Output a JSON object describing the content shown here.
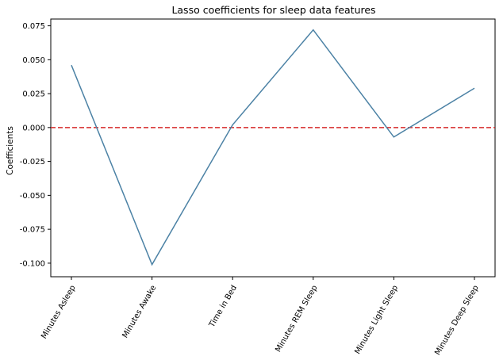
{
  "chart_data": {
    "type": "line",
    "title": "Lasso coefficients for sleep data features",
    "xlabel": "",
    "ylabel": "Coefficients",
    "categories": [
      "Minutes Asleep",
      "Minutes Awake",
      "Time in Bed",
      "Minutes REM Sleep",
      "Minutes Light Sleep",
      "Minutes Deep Sleep"
    ],
    "values": [
      0.046,
      -0.101,
      0.002,
      0.072,
      -0.007,
      0.029
    ],
    "ylim": [
      -0.11,
      0.08
    ],
    "yticks": [
      "0.075",
      "0.050",
      "0.025",
      "0.000",
      "-0.025",
      "-0.050",
      "-0.075",
      "-0.100"
    ],
    "ytick_values": [
      0.075,
      0.05,
      0.025,
      0.0,
      -0.025,
      -0.05,
      -0.075,
      -0.1
    ],
    "reference_line": {
      "y": 0.0,
      "style": "dashed",
      "color": "#d62728"
    },
    "line_color": "#4c82a5",
    "grid": false,
    "legend": "none"
  }
}
